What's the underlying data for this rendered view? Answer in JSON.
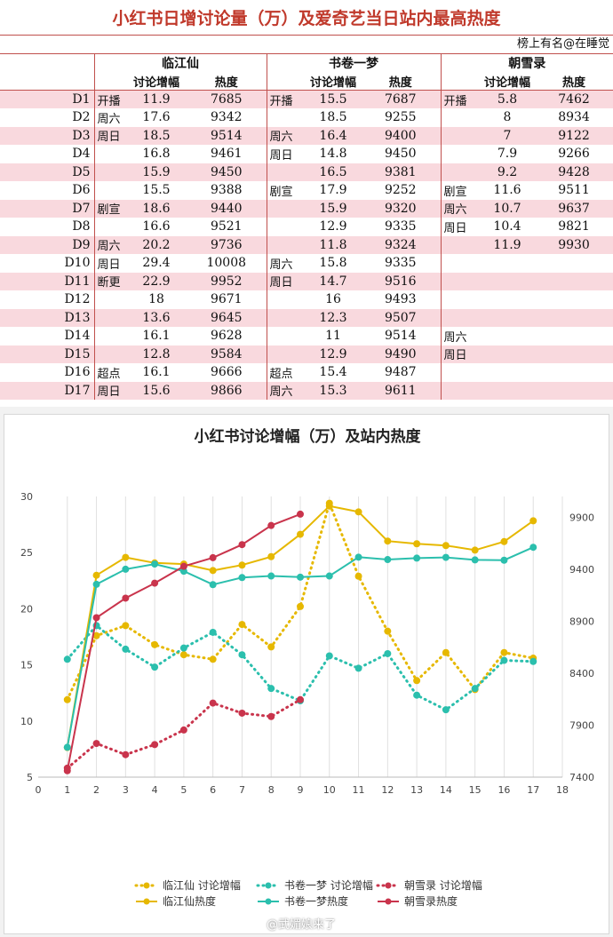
{
  "table": {
    "title": "小红书日增讨论量（万）及爱奇艺当日站内最高热度",
    "source": "榜上有名@在睡觉",
    "dramas": [
      "临江仙",
      "书卷一梦",
      "朝雪录"
    ],
    "col_discuss": "讨论增幅",
    "col_heat": "热度",
    "rows": [
      {
        "day": "D1",
        "c": [
          [
            "开播",
            "11.9",
            "7685"
          ],
          [
            "开播",
            "15.5",
            "7687"
          ],
          [
            "开播",
            "5.8",
            "7462"
          ]
        ]
      },
      {
        "day": "D2",
        "c": [
          [
            "周六",
            "17.6",
            "9342"
          ],
          [
            "",
            "18.5",
            "9255"
          ],
          [
            "",
            "8",
            "8934"
          ]
        ]
      },
      {
        "day": "D3",
        "c": [
          [
            "周日",
            "18.5",
            "9514"
          ],
          [
            "周六",
            "16.4",
            "9400"
          ],
          [
            "",
            "7",
            "9122"
          ]
        ]
      },
      {
        "day": "D4",
        "c": [
          [
            "",
            "16.8",
            "9461"
          ],
          [
            "周日",
            "14.8",
            "9450"
          ],
          [
            "",
            "7.9",
            "9266"
          ]
        ]
      },
      {
        "day": "D5",
        "c": [
          [
            "",
            "15.9",
            "9450"
          ],
          [
            "",
            "16.5",
            "9381"
          ],
          [
            "",
            "9.2",
            "9428"
          ]
        ]
      },
      {
        "day": "D6",
        "c": [
          [
            "",
            "15.5",
            "9388"
          ],
          [
            "剧宣",
            "17.9",
            "9252"
          ],
          [
            "剧宣",
            "11.6",
            "9511"
          ]
        ]
      },
      {
        "day": "D7",
        "c": [
          [
            "剧宣",
            "18.6",
            "9440"
          ],
          [
            "",
            "15.9",
            "9320"
          ],
          [
            "周六",
            "10.7",
            "9637"
          ]
        ]
      },
      {
        "day": "D8",
        "c": [
          [
            "",
            "16.6",
            "9521"
          ],
          [
            "",
            "12.9",
            "9335"
          ],
          [
            "周日",
            "10.4",
            "9821"
          ]
        ]
      },
      {
        "day": "D9",
        "c": [
          [
            "周六",
            "20.2",
            "9736"
          ],
          [
            "",
            "11.8",
            "9324"
          ],
          [
            "",
            "11.9",
            "9930"
          ]
        ]
      },
      {
        "day": "D10",
        "c": [
          [
            "周日",
            "29.4",
            "10008"
          ],
          [
            "周六",
            "15.8",
            "9335"
          ],
          [
            "",
            "",
            ""
          ]
        ]
      },
      {
        "day": "D11",
        "c": [
          [
            "断更",
            "22.9",
            "9952"
          ],
          [
            "周日",
            "14.7",
            "9516"
          ],
          [
            "",
            "",
            ""
          ]
        ]
      },
      {
        "day": "D12",
        "c": [
          [
            "",
            "18",
            "9671"
          ],
          [
            "",
            "16",
            "9493"
          ],
          [
            "",
            "",
            ""
          ]
        ]
      },
      {
        "day": "D13",
        "c": [
          [
            "",
            "13.6",
            "9645"
          ],
          [
            "",
            "12.3",
            "9507"
          ],
          [
            "",
            "",
            ""
          ]
        ]
      },
      {
        "day": "D14",
        "c": [
          [
            "",
            "16.1",
            "9628"
          ],
          [
            "",
            "11",
            "9514"
          ],
          [
            "周六",
            "",
            ""
          ]
        ]
      },
      {
        "day": "D15",
        "c": [
          [
            "",
            "12.8",
            "9584"
          ],
          [
            "",
            "12.9",
            "9490"
          ],
          [
            "周日",
            "",
            ""
          ]
        ]
      },
      {
        "day": "D16",
        "c": [
          [
            "超点",
            "16.1",
            "9666"
          ],
          [
            "超点",
            "15.4",
            "9487"
          ],
          [
            "",
            "",
            ""
          ]
        ]
      },
      {
        "day": "D17",
        "c": [
          [
            "周日",
            "15.6",
            "9866"
          ],
          [
            "周六",
            "15.3",
            "9611"
          ],
          [
            "",
            "",
            ""
          ]
        ]
      }
    ]
  },
  "chart_data": {
    "type": "line",
    "title": "小红书讨论增幅（万）及站内热度",
    "x_ticks": [
      0,
      1,
      2,
      3,
      4,
      5,
      6,
      7,
      8,
      9,
      10,
      11,
      12,
      13,
      14,
      15,
      16,
      17,
      18
    ],
    "xlim": [
      0,
      18
    ],
    "ylim_left": [
      5,
      30
    ],
    "y_ticks_left": [
      5,
      10,
      15,
      20,
      25,
      30
    ],
    "ylim_right": [
      7400,
      10100
    ],
    "y_ticks_right": [
      7400,
      7900,
      8400,
      8900,
      9400,
      9900
    ],
    "grid": "vertical",
    "legend_position": "bottom",
    "series": [
      {
        "name": "临江仙 讨论增幅",
        "axis": "left",
        "style": "dotted",
        "color": "#e6b800",
        "x": [
          1,
          2,
          3,
          4,
          5,
          6,
          7,
          8,
          9,
          10,
          11,
          12,
          13,
          14,
          15,
          16,
          17
        ],
        "y": [
          11.9,
          17.6,
          18.5,
          16.8,
          15.9,
          15.5,
          18.6,
          16.6,
          20.2,
          29.4,
          22.9,
          18,
          13.6,
          16.1,
          12.8,
          16.1,
          15.6
        ]
      },
      {
        "name": "书卷一梦 讨论增幅",
        "axis": "left",
        "style": "dotted",
        "color": "#2bbfad",
        "x": [
          1,
          2,
          3,
          4,
          5,
          6,
          7,
          8,
          9,
          10,
          11,
          12,
          13,
          14,
          15,
          16,
          17
        ],
        "y": [
          15.5,
          18.5,
          16.4,
          14.8,
          16.5,
          17.9,
          15.9,
          12.9,
          11.8,
          15.8,
          14.7,
          16,
          12.3,
          11,
          12.9,
          15.4,
          15.3
        ]
      },
      {
        "name": "朝雪录 讨论增幅",
        "axis": "left",
        "style": "dotted",
        "color": "#c9344c",
        "x": [
          1,
          2,
          3,
          4,
          5,
          6,
          7,
          8,
          9
        ],
        "y": [
          5.8,
          8,
          7,
          7.9,
          9.2,
          11.6,
          10.7,
          10.4,
          11.9
        ]
      },
      {
        "name": "临江仙热度",
        "axis": "right",
        "style": "solid",
        "color": "#e6b800",
        "x": [
          1,
          2,
          3,
          4,
          5,
          6,
          7,
          8,
          9,
          10,
          11,
          12,
          13,
          14,
          15,
          16,
          17
        ],
        "y": [
          7685,
          9342,
          9514,
          9461,
          9450,
          9388,
          9440,
          9521,
          9736,
          10008,
          9952,
          9671,
          9645,
          9628,
          9584,
          9666,
          9866
        ]
      },
      {
        "name": "书卷一梦热度",
        "axis": "right",
        "style": "solid",
        "color": "#2bbfad",
        "x": [
          1,
          2,
          3,
          4,
          5,
          6,
          7,
          8,
          9,
          10,
          11,
          12,
          13,
          14,
          15,
          16,
          17
        ],
        "y": [
          7687,
          9255,
          9400,
          9450,
          9381,
          9252,
          9320,
          9335,
          9324,
          9335,
          9516,
          9493,
          9507,
          9514,
          9490,
          9487,
          9611
        ]
      },
      {
        "name": "朝雪录热度",
        "axis": "right",
        "style": "solid",
        "color": "#c9344c",
        "x": [
          1,
          2,
          3,
          4,
          5,
          6,
          7,
          8,
          9
        ],
        "y": [
          7462,
          8934,
          9122,
          9266,
          9428,
          9511,
          9637,
          9821,
          9930
        ]
      }
    ]
  },
  "watermark": "@武媚娘来了"
}
